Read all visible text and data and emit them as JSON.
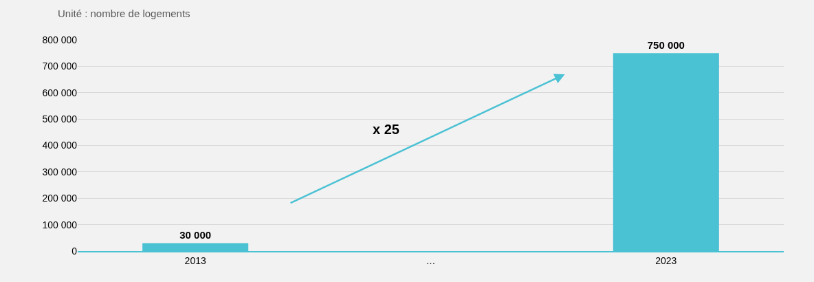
{
  "chart_data": {
    "type": "bar",
    "subtitle": "Unité : nombre de logements",
    "categories": [
      "2013",
      "…",
      "2023"
    ],
    "values": [
      30000,
      null,
      750000
    ],
    "value_labels": [
      "30 000",
      null,
      "750 000"
    ],
    "color": "#4bc1d4",
    "ylim": [
      0,
      800000
    ],
    "yticks": [
      {
        "value": 0,
        "label": "0"
      },
      {
        "value": 100000,
        "label": "100 000"
      },
      {
        "value": 200000,
        "label": "200 000"
      },
      {
        "value": 300000,
        "label": "300 000"
      },
      {
        "value": 400000,
        "label": "400 000"
      },
      {
        "value": 500000,
        "label": "500 000"
      },
      {
        "value": 600000,
        "label": "600 000"
      },
      {
        "value": 700000,
        "label": "700 000"
      },
      {
        "value": 800000,
        "label": "800 000"
      }
    ],
    "grid": "y",
    "annotations": [
      "x 25"
    ]
  }
}
